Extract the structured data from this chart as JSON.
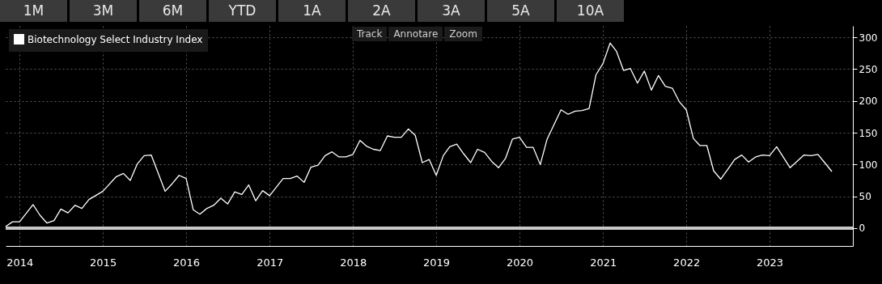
{
  "chart_data": {
    "type": "line",
    "annotations": [
      "1M",
      "3M",
      "6M",
      "YTD",
      "1A",
      "2A",
      "3A",
      "5A",
      "10A",
      "Track",
      "Annotare",
      "Zoom"
    ],
    "x": [
      "2013-11",
      "2013-12",
      "2014-01",
      "2014-03",
      "2014-04",
      "2014-05",
      "2014-06",
      "2014-07",
      "2014-08",
      "2014-09",
      "2014-10",
      "2014-11",
      "2015-01",
      "2015-03",
      "2015-04",
      "2015-05",
      "2015-06",
      "2015-07",
      "2015-08",
      "2015-10",
      "2015-11",
      "2015-12",
      "2016-01",
      "2016-02",
      "2016-03",
      "2016-04",
      "2016-05",
      "2016-06",
      "2016-07",
      "2016-08",
      "2016-09",
      "2016-10",
      "2016-11",
      "2016-12",
      "2017-01",
      "2017-03",
      "2017-04",
      "2017-05",
      "2017-06",
      "2017-07",
      "2017-08",
      "2017-09",
      "2017-10",
      "2017-11",
      "2017-12",
      "2018-01",
      "2018-02",
      "2018-03",
      "2018-04",
      "2018-05",
      "2018-06",
      "2018-07",
      "2018-08",
      "2018-09",
      "2018-10",
      "2018-11",
      "2018-12",
      "2019-01",
      "2019-02",
      "2019-03",
      "2019-04",
      "2019-05",
      "2019-06",
      "2019-07",
      "2019-08",
      "2019-09",
      "2019-10",
      "2019-11",
      "2019-12",
      "2020-01",
      "2020-02",
      "2020-03",
      "2020-04",
      "2020-05",
      "2020-07",
      "2020-08",
      "2020-09",
      "2020-10",
      "2020-11",
      "2020-12",
      "2021-01",
      "2021-02",
      "2021-03",
      "2021-04",
      "2021-05",
      "2021-06",
      "2021-07",
      "2021-08",
      "2021-09",
      "2021-10",
      "2021-11",
      "2021-12",
      "2022-01",
      "2022-02",
      "2022-03",
      "2022-04",
      "2022-05",
      "2022-06",
      "2022-07",
      "2022-08",
      "2022-09",
      "2022-10",
      "2022-11",
      "2022-12",
      "2023-01",
      "2023-02",
      "2023-04",
      "2023-06",
      "2023-07",
      "2023-08",
      "2023-10"
    ],
    "series": [
      {
        "name": "Biotechnology Select Industry Index",
        "color": "#ffffff",
        "values": [
          2.5,
          10,
          10,
          37,
          20,
          8,
          12,
          30,
          24,
          36,
          31,
          45,
          58,
          81,
          86,
          75,
          101,
          114,
          115,
          58,
          70,
          83,
          78,
          29,
          22,
          31,
          36,
          47,
          38,
          57,
          53,
          68,
          43,
          59,
          51,
          78,
          78,
          82,
          72,
          96,
          99,
          114,
          120,
          112,
          112,
          116,
          138,
          129,
          124,
          122,
          145,
          143,
          143,
          156,
          146,
          103,
          108,
          83,
          114,
          128,
          132,
          117,
          103,
          124,
          119,
          105,
          95,
          110,
          140,
          143,
          127,
          127,
          100,
          140,
          186,
          179,
          184,
          185,
          188,
          241,
          259,
          291,
          278,
          248,
          251,
          228,
          247,
          217,
          240,
          223,
          220,
          199,
          186,
          141,
          130,
          130,
          90,
          77,
          92,
          108,
          115,
          104,
          112,
          115,
          114,
          128,
          95,
          115,
          114,
          116,
          89
        ]
      }
    ],
    "xlim": [
      "2013-11",
      "2024-01"
    ],
    "xticks": [
      {
        "value": "2014-01",
        "label": "2014"
      },
      {
        "value": "2015-01",
        "label": "2015"
      },
      {
        "value": "2016-01",
        "label": "2016"
      },
      {
        "value": "2017-01",
        "label": "2017"
      },
      {
        "value": "2018-01",
        "label": "2018"
      },
      {
        "value": "2019-01",
        "label": "2019"
      },
      {
        "value": "2020-01",
        "label": "2020"
      },
      {
        "value": "2021-01",
        "label": "2021"
      },
      {
        "value": "2022-01",
        "label": "2022"
      },
      {
        "value": "2023-01",
        "label": "2023"
      }
    ],
    "ylim": [
      -28,
      318
    ],
    "yticks": [
      0,
      50,
      100,
      150,
      200,
      250,
      300
    ],
    "ref_lines": [
      {
        "axis": "y",
        "value": 0,
        "color": "#c8c8c8"
      }
    ],
    "grid": true,
    "legend": "top left",
    "marker": "none",
    "line_style": "solid"
  }
}
